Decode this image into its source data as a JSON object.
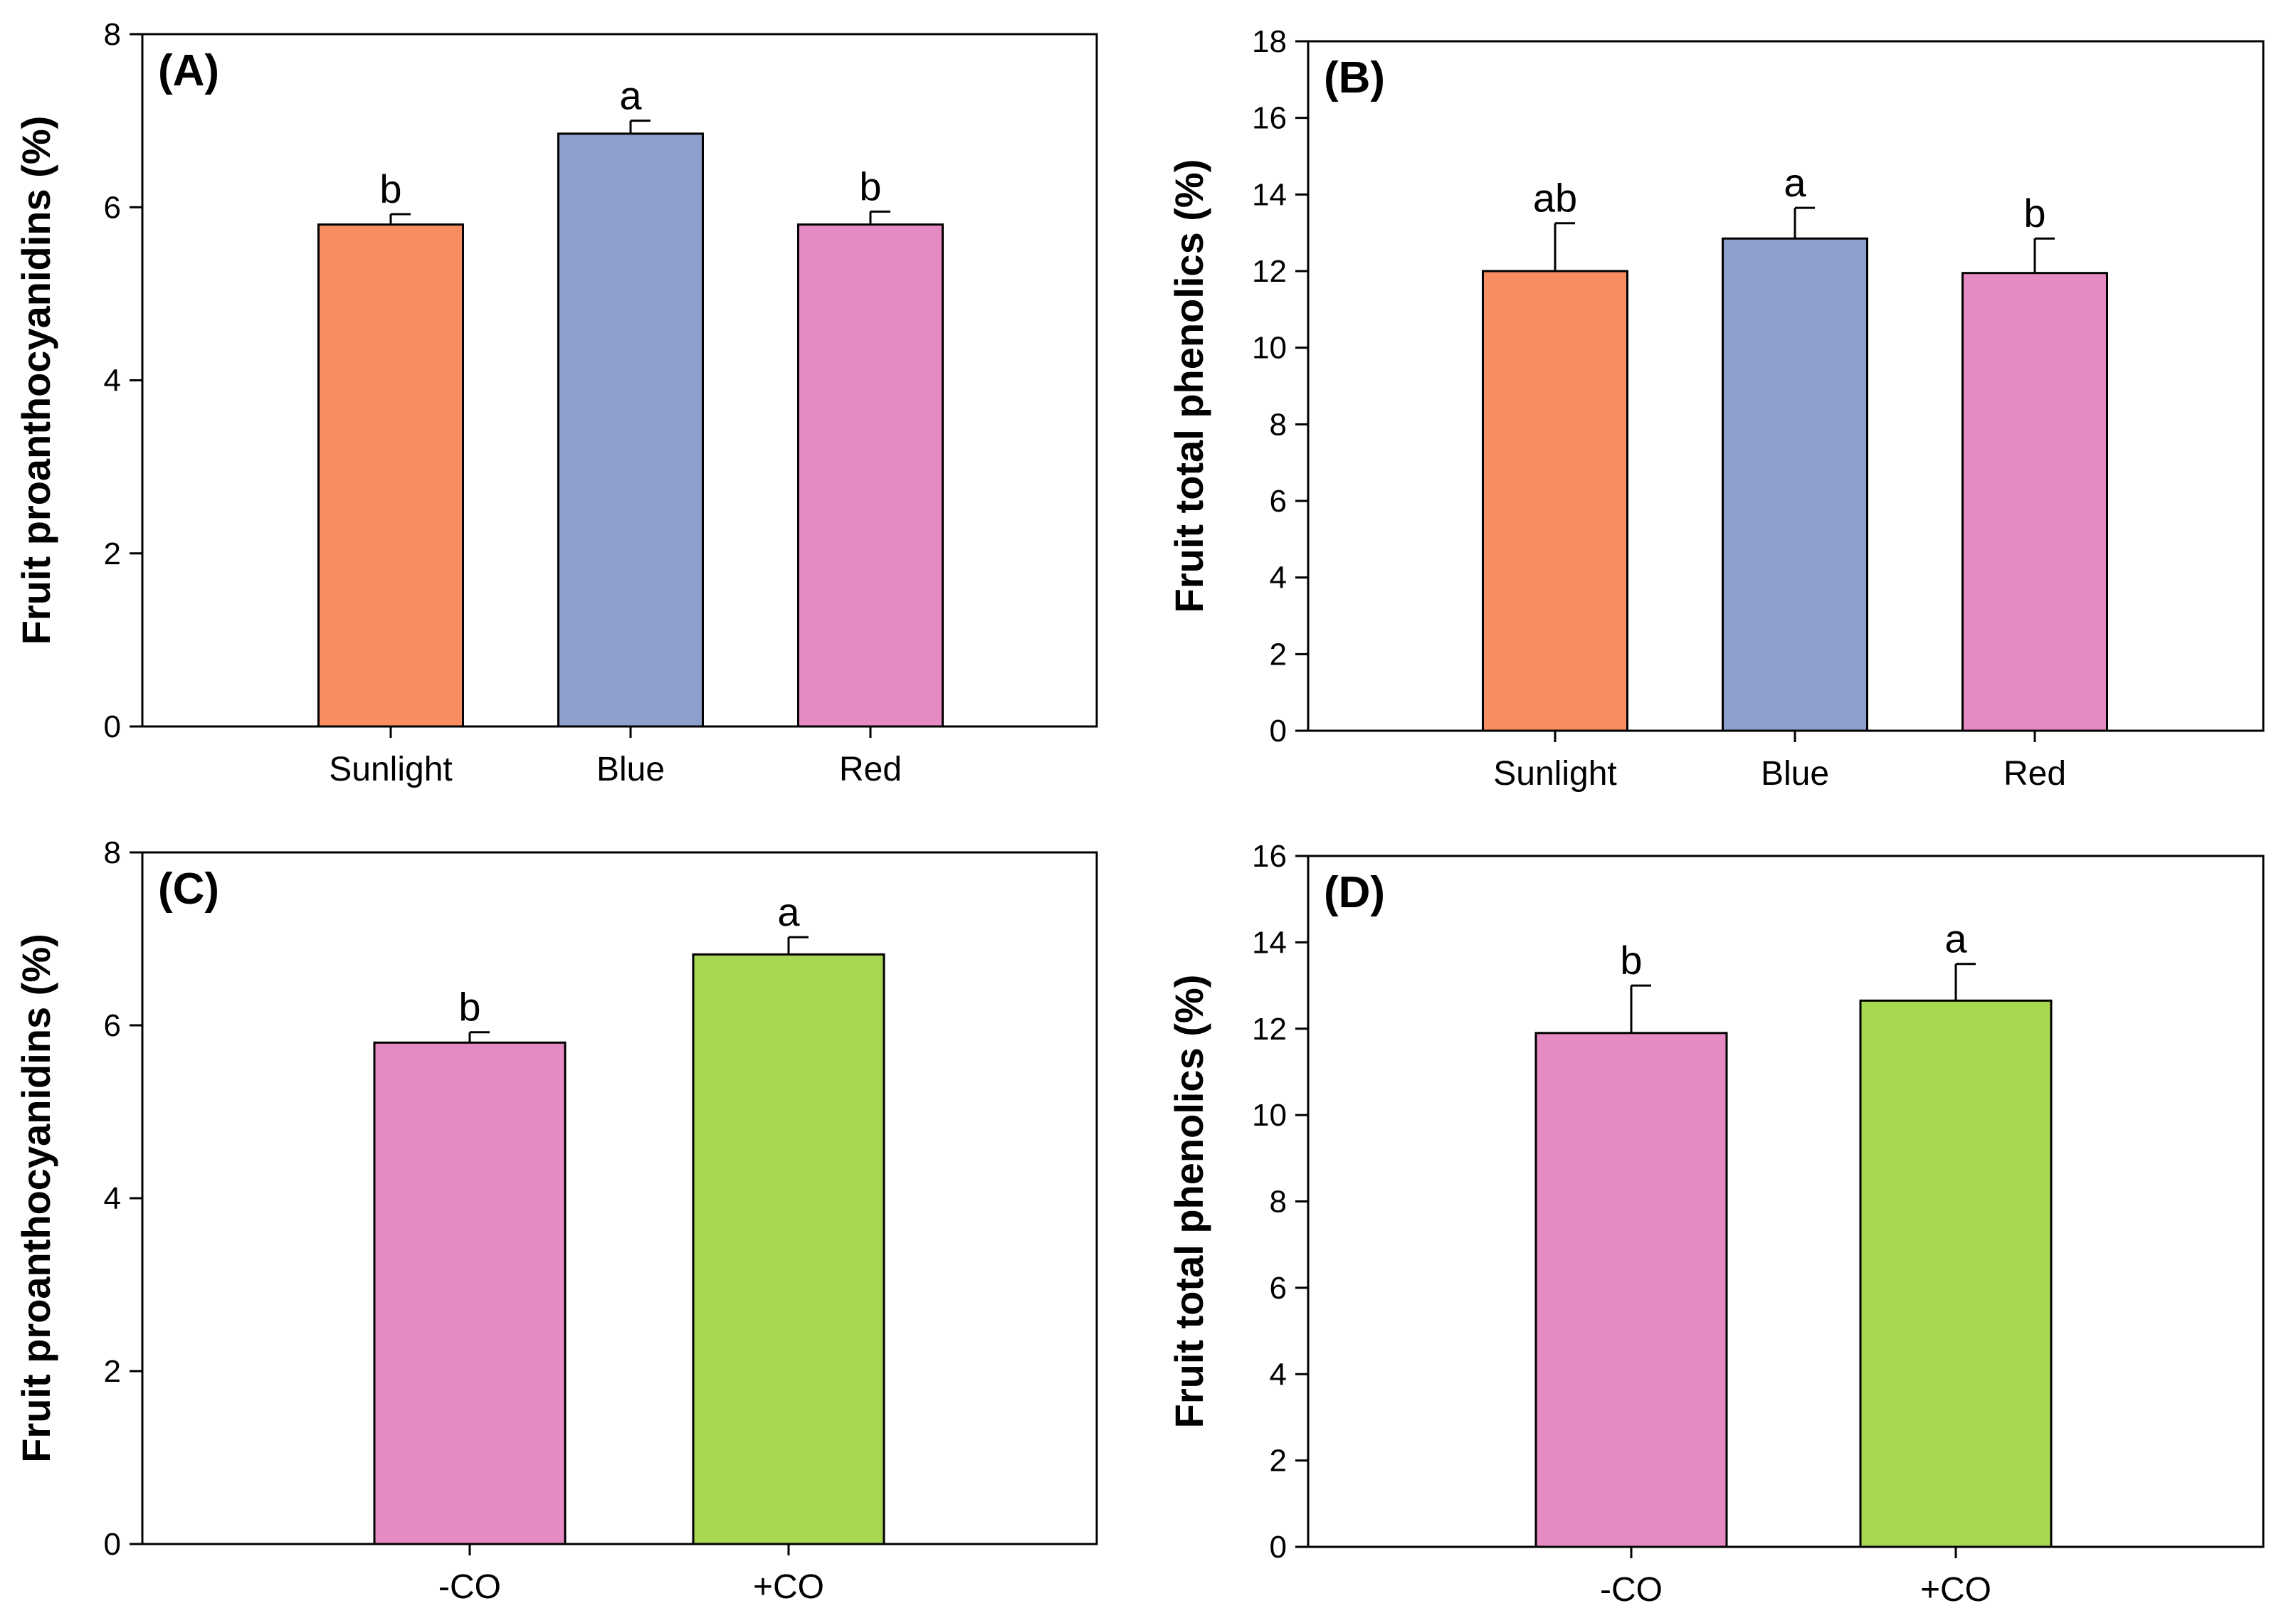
{
  "chart_data": [
    {
      "id": "A",
      "type": "bar",
      "title": "(A)",
      "xlabel": "",
      "ylabel": "Fruit proanthocyanidins (%)",
      "categories": [
        "Sunlight",
        "Blue",
        "Red"
      ],
      "values": [
        5.8,
        6.85,
        5.8
      ],
      "errors": [
        0.12,
        0.15,
        0.15
      ],
      "significance": [
        "b",
        "a",
        "b"
      ],
      "colors": [
        "#f98d62",
        "#8d9fcb",
        "#e58ac2"
      ],
      "ylim": [
        0,
        8
      ],
      "yticks": [
        0,
        2,
        4,
        6,
        8
      ],
      "yticklabels": [
        "0",
        "2",
        "4",
        "6",
        "8"
      ],
      "grid": false,
      "legend": "none"
    },
    {
      "id": "B",
      "type": "bar",
      "title": "(B)",
      "xlabel": "",
      "ylabel": "Fruit total phenolics (%)",
      "categories": [
        "Sunlight",
        "Blue",
        "Red"
      ],
      "values": [
        12.0,
        12.85,
        11.95
      ],
      "errors": [
        1.25,
        0.8,
        0.9
      ],
      "significance": [
        "ab",
        "a",
        "b"
      ],
      "colors": [
        "#f98d62",
        "#8d9fcb",
        "#e58ac2"
      ],
      "ylim": [
        0,
        18
      ],
      "yticks": [
        0,
        2,
        4,
        6,
        8,
        10,
        12,
        14,
        16,
        18
      ],
      "yticklabels": [
        "0",
        "2",
        "4",
        "6",
        "8",
        "10",
        "12",
        "14",
        "16",
        "18"
      ],
      "grid": false,
      "legend": "none"
    },
    {
      "id": "C",
      "type": "bar",
      "title": "(C)",
      "xlabel": "",
      "ylabel": "Fruit proanthocyanidins (%)",
      "categories": [
        "-CO",
        "+CO"
      ],
      "values": [
        5.8,
        6.82
      ],
      "errors": [
        0.12,
        0.2
      ],
      "significance": [
        "b",
        "a"
      ],
      "colors": [
        "#e58ac2",
        "#a8d752"
      ],
      "ylim": [
        0,
        8
      ],
      "yticks": [
        0,
        2,
        4,
        6,
        8
      ],
      "yticklabels": [
        "0",
        "2",
        "4",
        "6",
        "8"
      ],
      "grid": false,
      "legend": "none"
    },
    {
      "id": "D",
      "type": "bar",
      "title": "(D)",
      "xlabel": "",
      "ylabel": "Fruit total phenolics (%)",
      "categories": [
        "-CO",
        "+CO"
      ],
      "values": [
        11.9,
        12.65
      ],
      "errors": [
        1.1,
        0.85
      ],
      "significance": [
        "b",
        "a"
      ],
      "colors": [
        "#e58ac2",
        "#a8d752"
      ],
      "ylim": [
        0,
        16
      ],
      "yticks": [
        0,
        2,
        4,
        6,
        8,
        10,
        12,
        14,
        16
      ],
      "yticklabels": [
        "0",
        "2",
        "4",
        "6",
        "8",
        "10",
        "12",
        "14",
        "16"
      ],
      "grid": false,
      "legend": "none"
    }
  ]
}
